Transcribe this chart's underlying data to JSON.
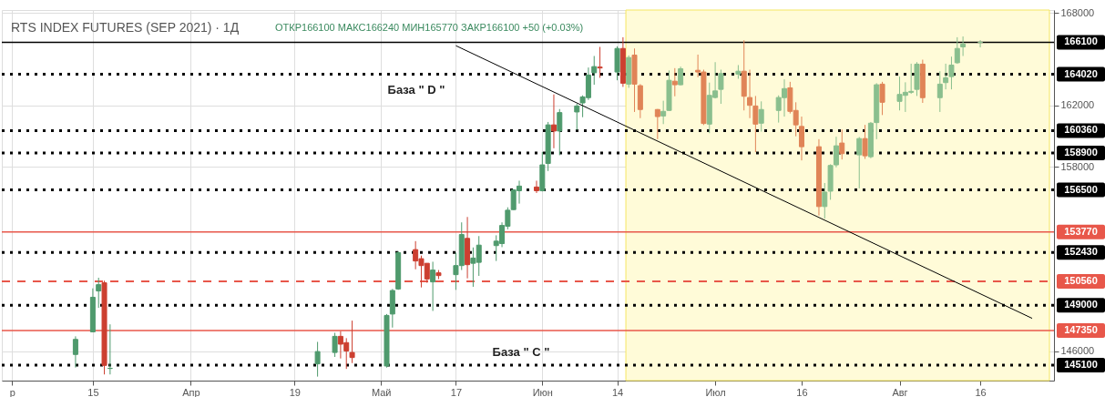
{
  "chart_data": {
    "type": "candlestick",
    "title": "RTS INDEX FUTURES (SEP 2021) · 1Д",
    "subtitle": "ОТКР166100 МАКС166240 МИН165770 ЗАКР166100 +50 (+0.03%)",
    "x": [
      "2021-03-12",
      "2021-03-15",
      "2021-03-16",
      "2021-03-17",
      "2021-03-18",
      "2021-04-23",
      "2021-04-26",
      "2021-04-27",
      "2021-04-28",
      "2021-04-29",
      "2021-05-05",
      "2021-05-06",
      "2021-05-07",
      "2021-05-10",
      "2021-05-11",
      "2021-05-12",
      "2021-05-13",
      "2021-05-14",
      "2021-05-17",
      "2021-05-18",
      "2021-05-19",
      "2021-05-20",
      "2021-05-21",
      "2021-05-24",
      "2021-05-25",
      "2021-05-26",
      "2021-05-27",
      "2021-05-28",
      "2021-05-31",
      "2021-06-01",
      "2021-06-02",
      "2021-06-03",
      "2021-06-04",
      "2021-06-07",
      "2021-06-08",
      "2021-06-09",
      "2021-06-10",
      "2021-06-11",
      "2021-06-14",
      "2021-06-15",
      "2021-06-16",
      "2021-06-17",
      "2021-06-18",
      "2021-06-21",
      "2021-06-22",
      "2021-06-23",
      "2021-06-24",
      "2021-06-25",
      "2021-06-28",
      "2021-06-29",
      "2021-06-30",
      "2021-07-01",
      "2021-07-02",
      "2021-07-05",
      "2021-07-06",
      "2021-07-07",
      "2021-07-08",
      "2021-07-09",
      "2021-07-12",
      "2021-07-13",
      "2021-07-14",
      "2021-07-15",
      "2021-07-16",
      "2021-07-19",
      "2021-07-20",
      "2021-07-21",
      "2021-07-22",
      "2021-07-23",
      "2021-07-26",
      "2021-07-27",
      "2021-07-28",
      "2021-07-29",
      "2021-07-30",
      "2021-08-02",
      "2021-08-03",
      "2021-08-04",
      "2021-08-05",
      "2021-08-06",
      "2021-08-09",
      "2021-08-10",
      "2021-08-11",
      "2021-08-12",
      "2021-08-13",
      "2021-08-16"
    ],
    "ohlc": [
      [
        145800,
        146980,
        144950,
        146780
      ],
      [
        147270,
        150100,
        147270,
        149520
      ],
      [
        149930,
        150790,
        148830,
        150340
      ],
      [
        150460,
        150600,
        144500,
        145090
      ],
      [
        144890,
        147760,
        144500,
        144900
      ],
      [
        145190,
        146620,
        144360,
        145990
      ],
      [
        145930,
        147210,
        145640,
        146980
      ],
      [
        146980,
        147310,
        145540,
        146470
      ],
      [
        146570,
        146860,
        144860,
        146030
      ],
      [
        145930,
        148000,
        145240,
        145600
      ],
      [
        145050,
        148430,
        144950,
        148340
      ],
      [
        148430,
        150060,
        147550,
        149960
      ],
      [
        150060,
        152520,
        150000,
        152420
      ],
      [
        152620,
        153170,
        151340,
        151880
      ],
      [
        152030,
        152230,
        150160,
        151580
      ],
      [
        151730,
        151730,
        150460,
        150710
      ],
      [
        150520,
        151830,
        148630,
        151290
      ],
      [
        151110,
        151290,
        150700,
        150930
      ],
      [
        150990,
        152420,
        150000,
        151580
      ],
      [
        151580,
        154390,
        151290,
        153600
      ],
      [
        153350,
        154740,
        150750,
        151640
      ],
      [
        151730,
        152760,
        150200,
        152070
      ],
      [
        151790,
        153500,
        150910,
        152910
      ],
      [
        152880,
        153550,
        151880,
        153170
      ],
      [
        153010,
        154390,
        152780,
        154190
      ],
      [
        154140,
        155370,
        153940,
        155180
      ],
      [
        155220,
        156550,
        155200,
        156500
      ],
      [
        156450,
        157100,
        155610,
        156750
      ],
      [
        156690,
        157100,
        156300,
        156450
      ],
      [
        156450,
        158970,
        156400,
        158130
      ],
      [
        158220,
        160920,
        157730,
        160730
      ],
      [
        160730,
        162710,
        159210,
        160330
      ],
      [
        160330,
        161760,
        158760,
        161530
      ],
      [
        161570,
        162100,
        160390,
        161960
      ],
      [
        162160,
        162650,
        161230,
        162550
      ],
      [
        162500,
        164460,
        162350,
        163970
      ],
      [
        164120,
        165210,
        163340,
        164520
      ],
      [
        164490,
        165800,
        163790,
        164430
      ],
      [
        164170,
        165840,
        163630,
        165700
      ],
      [
        165700,
        166430,
        163200,
        163440
      ],
      [
        163380,
        165250,
        163140,
        165110
      ],
      [
        165270,
        165700,
        161570,
        163380
      ],
      [
        163280,
        163380,
        161170,
        161730
      ],
      [
        161730,
        161760,
        159800,
        161270
      ],
      [
        161310,
        162300,
        160780,
        161610
      ],
      [
        161670,
        164270,
        161630,
        163630
      ],
      [
        163570,
        164420,
        162590,
        163340
      ],
      [
        163340,
        164520,
        163300,
        164380
      ],
      [
        164280,
        165300,
        163830,
        164170
      ],
      [
        164170,
        164320,
        160720,
        160820
      ],
      [
        160780,
        163480,
        160190,
        162650
      ],
      [
        162510,
        164810,
        162450,
        162940
      ],
      [
        163040,
        164320,
        162100,
        164070
      ],
      [
        164030,
        164620,
        163730,
        164220
      ],
      [
        164220,
        166230,
        161670,
        162590
      ],
      [
        162510,
        164320,
        161170,
        162000
      ],
      [
        161960,
        162610,
        158960,
        160780
      ],
      [
        160840,
        162260,
        160290,
        161730
      ],
      [
        161670,
        162650,
        160880,
        162510
      ],
      [
        162500,
        163690,
        161270,
        163090
      ],
      [
        163140,
        163530,
        161470,
        161610
      ],
      [
        161670,
        162200,
        159990,
        160730
      ],
      [
        160630,
        161270,
        158420,
        159310
      ],
      [
        159310,
        159800,
        154830,
        155420
      ],
      [
        155420,
        156950,
        154630,
        156360
      ],
      [
        156420,
        158170,
        155860,
        158090
      ],
      [
        158130,
        159960,
        157970,
        159370
      ],
      [
        159550,
        160430,
        158480,
        158860
      ],
      [
        158780,
        159940,
        156600,
        159840
      ],
      [
        159840,
        160730,
        158520,
        158720
      ],
      [
        158660,
        160920,
        158560,
        160840
      ],
      [
        160880,
        163440,
        159800,
        163340
      ],
      [
        163380,
        163530,
        161370,
        162200
      ],
      [
        162260,
        163870,
        161670,
        162710
      ],
      [
        162650,
        163500,
        161570,
        162850
      ],
      [
        162850,
        164710,
        162750,
        162910
      ],
      [
        163040,
        164810,
        162610,
        164680
      ],
      [
        164680,
        164970,
        162160,
        162500
      ],
      [
        162500,
        164220,
        161570,
        163380
      ],
      [
        163480,
        164710,
        163040,
        163790
      ],
      [
        163870,
        165170,
        163040,
        164620
      ],
      [
        164770,
        166430,
        164700,
        165700
      ],
      [
        165800,
        166480,
        165210,
        165990
      ],
      [
        166100,
        166240,
        165770,
        166100
      ]
    ],
    "colors": [
      "#4f9a6d",
      "#4f9a6d",
      "#4f9a6d",
      "#cc3f30",
      "#4f9a6d",
      "#4f9a6d",
      "#4f9a6d",
      "#cc3f30",
      "#cc3f30",
      "#cc3f30",
      "#4f9a6d",
      "#4f9a6d",
      "#4f9a6d",
      "#cc3f30",
      "#cc3f30",
      "#cc3f30",
      "#4f9a6d",
      "#cc3f30",
      "#4f9a6d",
      "#4f9a6d",
      "#cc3f30",
      "#4f9a6d",
      "#4f9a6d",
      "#4f9a6d",
      "#4f9a6d",
      "#4f9a6d",
      "#4f9a6d",
      "#4f9a6d",
      "#cc3f30",
      "#4f9a6d",
      "#4f9a6d",
      "#cc3f30",
      "#4f9a6d",
      "#4f9a6d",
      "#4f9a6d",
      "#4f9a6d",
      "#4f9a6d",
      "#cc3f30",
      "#4f9a6d",
      "#cc3f30",
      "#8abf8e",
      "#e08457",
      "#e08457",
      "#e08457",
      "#8abf8e",
      "#8abf8e",
      "#e08457",
      "#8abf8e",
      "#e08457",
      "#e08457",
      "#8abf8e",
      "#8abf8e",
      "#8abf8e",
      "#8abf8e",
      "#e08457",
      "#e08457",
      "#e08457",
      "#8abf8e",
      "#8abf8e",
      "#8abf8e",
      "#e08457",
      "#e08457",
      "#e08457",
      "#e08457",
      "#8abf8e",
      "#8abf8e",
      "#8abf8e",
      "#e08457",
      "#8abf8e",
      "#e08457",
      "#8abf8e",
      "#8abf8e",
      "#e08457",
      "#8abf8e",
      "#8abf8e",
      "#8abf8e",
      "#8abf8e",
      "#e08457",
      "#8abf8e",
      "#8abf8e",
      "#8abf8e",
      "#8abf8e",
      "#8abf8e",
      "#8abf8e"
    ],
    "series": [
      {
        "type": "line",
        "color": "#000000",
        "x": [
          "2021-05-17",
          "2021-08-25"
        ],
        "values": [
          165880,
          148150
        ]
      }
    ],
    "ylim": [
      144100,
      168200
    ],
    "yticks": [
      146000,
      158000,
      162000,
      168000
    ],
    "xlim": [
      "2021-02-28",
      "2021-08-28"
    ],
    "xticks": [
      {
        "value": "2021-03-01",
        "label": "р"
      },
      {
        "value": "2021-03-15",
        "label": "15"
      },
      {
        "value": "2021-04-01",
        "label": "Апр"
      },
      {
        "value": "2021-04-19",
        "label": "19"
      },
      {
        "value": "2021-05-04",
        "label": "Май"
      },
      {
        "value": "2021-05-17",
        "label": "17"
      },
      {
        "value": "2021-06-01",
        "label": "Июн"
      },
      {
        "value": "2021-06-14",
        "label": "14"
      },
      {
        "value": "2021-07-01",
        "label": "Июл"
      },
      {
        "value": "2021-07-16",
        "label": "16"
      },
      {
        "value": "2021-08-02",
        "label": "Авг"
      },
      {
        "value": "2021-08-16",
        "label": "16"
      }
    ],
    "ref_lines": [
      {
        "axis": "y",
        "value": 166100,
        "label": "166100",
        "color": "#000000",
        "line_style": "solid"
      },
      {
        "axis": "y",
        "value": 164020,
        "label": "164020",
        "color": "#000000",
        "line_style": "dotted"
      },
      {
        "axis": "y",
        "value": 160360,
        "label": "160360",
        "color": "#000000",
        "line_style": "dotted"
      },
      {
        "axis": "y",
        "value": 158900,
        "label": "158900",
        "color": "#000000",
        "line_style": "dotted"
      },
      {
        "axis": "y",
        "value": 156500,
        "label": "156500",
        "color": "#000000",
        "line_style": "dotted"
      },
      {
        "axis": "y",
        "value": 153770,
        "label": "153770",
        "color": "#e8574a",
        "line_style": "solid"
      },
      {
        "axis": "y",
        "value": 152430,
        "label": "152430",
        "color": "#000000",
        "line_style": "dotted"
      },
      {
        "axis": "y",
        "value": 150560,
        "label": "150560",
        "color": "#e8574a",
        "line_style": "dashed"
      },
      {
        "axis": "y",
        "value": 149000,
        "label": "149000",
        "color": "#000000",
        "line_style": "dotted"
      },
      {
        "axis": "y",
        "value": 147350,
        "label": "147350",
        "color": "#e8574a",
        "line_style": "solid"
      },
      {
        "axis": "y",
        "value": 145100,
        "label": "145100",
        "color": "#000000",
        "line_style": "dotted"
      }
    ],
    "bands": [
      {
        "axis": "x",
        "from": "2021-06-15T12:00",
        "to": "2021-08-28",
        "color": "#fffbd8"
      }
    ],
    "annotations": [
      "База  \" D \"",
      "База  \" C \""
    ],
    "grid": true
  }
}
